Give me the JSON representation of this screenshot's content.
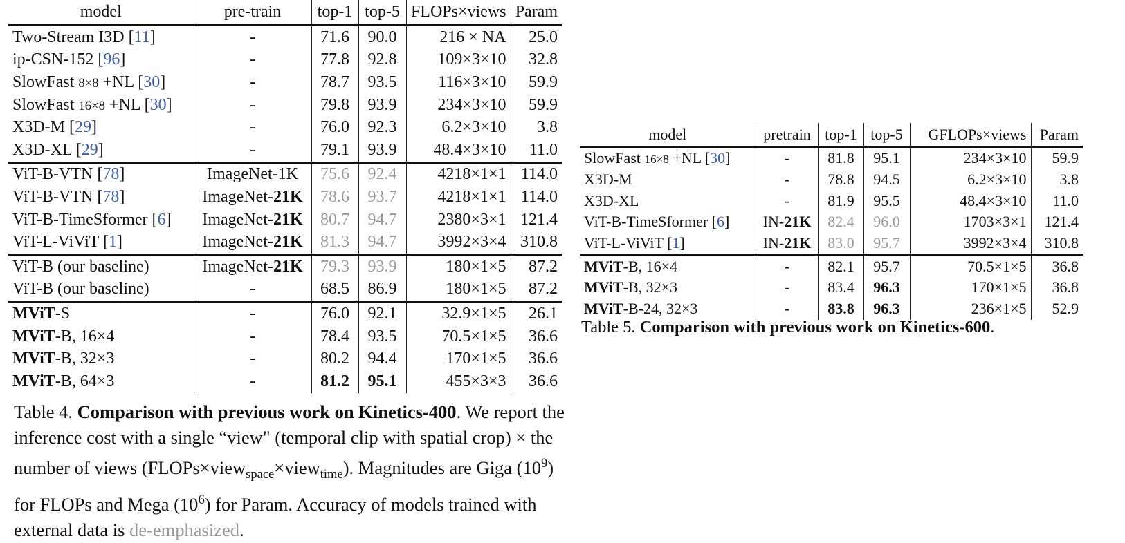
{
  "table4": {
    "header": [
      "model",
      "pre-train",
      "top-1",
      "top-5",
      "FLOPs×views",
      "Param"
    ],
    "groups": [
      [
        [
          [
            "Two-Stream I3D [",
            {
              "text": "11",
              "style": "cite"
            },
            "]"
          ],
          [
            "-"
          ],
          [
            "71.6"
          ],
          [
            "90.0"
          ],
          [
            "216 × NA"
          ],
          [
            "25.0"
          ]
        ],
        [
          [
            "ip-CSN-152 [",
            {
              "text": "96",
              "style": "cite"
            },
            "]"
          ],
          [
            "-"
          ],
          [
            "77.8"
          ],
          [
            "92.8"
          ],
          [
            "109×3×10"
          ],
          [
            "32.8"
          ]
        ],
        [
          [
            "SlowFast ",
            {
              "text": "8×8",
              "style": "small"
            },
            " +NL [",
            {
              "text": "30",
              "style": "cite"
            },
            "]"
          ],
          [
            "-"
          ],
          [
            "78.7"
          ],
          [
            "93.5"
          ],
          [
            "116×3×10"
          ],
          [
            "59.9"
          ]
        ],
        [
          [
            "SlowFast ",
            {
              "text": "16×8",
              "style": "small"
            },
            " +NL [",
            {
              "text": "30",
              "style": "cite"
            },
            "]"
          ],
          [
            "-"
          ],
          [
            "79.8"
          ],
          [
            "93.9"
          ],
          [
            "234×3×10"
          ],
          [
            "59.9"
          ]
        ],
        [
          [
            "X3D-M [",
            {
              "text": "29",
              "style": "cite"
            },
            "]"
          ],
          [
            "-"
          ],
          [
            "76.0"
          ],
          [
            "92.3"
          ],
          [
            "6.2×3×10"
          ],
          [
            "3.8"
          ]
        ],
        [
          [
            "X3D-XL [",
            {
              "text": "29",
              "style": "cite"
            },
            "]"
          ],
          [
            "-"
          ],
          [
            "79.1"
          ],
          [
            "93.9"
          ],
          [
            "48.4×3×10"
          ],
          [
            "11.0"
          ]
        ]
      ],
      [
        [
          [
            "ViT-B-VTN [",
            {
              "text": "78",
              "style": "cite"
            },
            "]"
          ],
          [
            "ImageNet-1K"
          ],
          [
            {
              "text": "75.6",
              "style": "gray"
            }
          ],
          [
            {
              "text": "92.4",
              "style": "gray"
            }
          ],
          [
            "4218×1×1"
          ],
          [
            "114.0"
          ]
        ],
        [
          [
            "ViT-B-VTN [",
            {
              "text": "78",
              "style": "cite"
            },
            "]"
          ],
          [
            "ImageNet-",
            {
              "text": "21K",
              "style": "bold"
            }
          ],
          [
            {
              "text": "78.6",
              "style": "gray"
            }
          ],
          [
            {
              "text": "93.7",
              "style": "gray"
            }
          ],
          [
            "4218×1×1"
          ],
          [
            "114.0"
          ]
        ],
        [
          [
            "ViT-B-TimeSformer [",
            {
              "text": "6",
              "style": "cite"
            },
            "]"
          ],
          [
            "ImageNet-",
            {
              "text": "21K",
              "style": "bold"
            }
          ],
          [
            {
              "text": "80.7",
              "style": "gray"
            }
          ],
          [
            {
              "text": "94.7",
              "style": "gray"
            }
          ],
          [
            "2380×3×1"
          ],
          [
            "121.4"
          ]
        ],
        [
          [
            "ViT-L-ViViT [",
            {
              "text": "1",
              "style": "cite"
            },
            "]"
          ],
          [
            "ImageNet-",
            {
              "text": "21K",
              "style": "bold"
            }
          ],
          [
            {
              "text": "81.3",
              "style": "gray"
            }
          ],
          [
            {
              "text": "94.7",
              "style": "gray"
            }
          ],
          [
            "3992×3×4"
          ],
          [
            "310.8"
          ]
        ]
      ],
      [
        [
          [
            "ViT-B (our baseline)"
          ],
          [
            "ImageNet-",
            {
              "text": "21K",
              "style": "bold"
            }
          ],
          [
            {
              "text": "79.3",
              "style": "gray"
            }
          ],
          [
            {
              "text": "93.9",
              "style": "gray"
            }
          ],
          [
            "180×1×5"
          ],
          [
            "87.2"
          ]
        ],
        [
          [
            "ViT-B (our baseline)"
          ],
          [
            "-"
          ],
          [
            "68.5"
          ],
          [
            "86.9"
          ],
          [
            "180×1×5"
          ],
          [
            "87.2"
          ]
        ]
      ],
      [
        [
          [
            {
              "text": "MViT",
              "style": "bold"
            },
            "-S"
          ],
          [
            "-"
          ],
          [
            "76.0"
          ],
          [
            "92.1"
          ],
          [
            "32.9×1×5"
          ],
          [
            "26.1"
          ]
        ],
        [
          [
            {
              "text": "MViT",
              "style": "bold"
            },
            "-B, 16×4"
          ],
          [
            "-"
          ],
          [
            "78.4"
          ],
          [
            "93.5"
          ],
          [
            "70.5×1×5"
          ],
          [
            "36.6"
          ]
        ],
        [
          [
            {
              "text": "MViT",
              "style": "bold"
            },
            "-B, 32×3"
          ],
          [
            "-"
          ],
          [
            "80.2"
          ],
          [
            "94.4"
          ],
          [
            "170×1×5"
          ],
          [
            "36.6"
          ]
        ],
        [
          [
            {
              "text": "MViT",
              "style": "bold"
            },
            "-B, 64×3"
          ],
          [
            "-"
          ],
          [
            {
              "text": "81.2",
              "style": "bold"
            }
          ],
          [
            {
              "text": "95.1",
              "style": "bold"
            }
          ],
          [
            "455×3×3"
          ],
          [
            "36.6"
          ]
        ]
      ]
    ],
    "caption": [
      "Table 4. ",
      {
        "text": "Comparison with previous work on Kinetics-400",
        "style": "bold"
      },
      ". We report the inference cost with a single “view\" (temporal clip with spatial crop) × the number of views (FLOPs×view",
      {
        "text": "space",
        "style": "sub"
      },
      "×view",
      {
        "text": "time",
        "style": "sub"
      },
      "). Magnitudes are Giga (10",
      {
        "text": "9",
        "style": "sup"
      },
      ") for FLOPs and Mega (10",
      {
        "text": "6",
        "style": "sup"
      },
      ") for Param. Accuracy of models trained with external data is ",
      {
        "text": "de-emphasized",
        "style": "gray"
      },
      "."
    ]
  },
  "table5": {
    "header": [
      "model",
      "pretrain",
      "top-1",
      "top-5",
      "GFLOPs×views",
      "Param"
    ],
    "groups": [
      [
        [
          [
            "SlowFast ",
            {
              "text": "16×8",
              "style": "small"
            },
            " +NL [",
            {
              "text": "30",
              "style": "cite"
            },
            "]"
          ],
          [
            "-"
          ],
          [
            "81.8"
          ],
          [
            "95.1"
          ],
          [
            "234×3×10"
          ],
          [
            "59.9"
          ]
        ],
        [
          [
            "X3D-M"
          ],
          [
            "-"
          ],
          [
            "78.8"
          ],
          [
            "94.5"
          ],
          [
            "6.2×3×10"
          ],
          [
            "3.8"
          ]
        ],
        [
          [
            "X3D-XL"
          ],
          [
            "-"
          ],
          [
            "81.9"
          ],
          [
            "95.5"
          ],
          [
            "48.4×3×10"
          ],
          [
            "11.0"
          ]
        ],
        [
          [
            "ViT-B-TimeSformer [",
            {
              "text": "6",
              "style": "cite"
            },
            "]"
          ],
          [
            "IN-",
            {
              "text": "21K",
              "style": "bold"
            }
          ],
          [
            {
              "text": "82.4",
              "style": "gray"
            }
          ],
          [
            {
              "text": "96.0",
              "style": "gray"
            }
          ],
          [
            "1703×3×1"
          ],
          [
            "121.4"
          ]
        ],
        [
          [
            "ViT-L-ViViT [",
            {
              "text": "1",
              "style": "cite"
            },
            "]"
          ],
          [
            "IN-",
            {
              "text": "21K",
              "style": "bold"
            }
          ],
          [
            {
              "text": "83.0",
              "style": "gray"
            }
          ],
          [
            {
              "text": "95.7",
              "style": "gray"
            }
          ],
          [
            "3992×3×4"
          ],
          [
            "310.8"
          ]
        ]
      ],
      [
        [
          [
            {
              "text": "MViT",
              "style": "bold"
            },
            "-B, 16×4"
          ],
          [
            "-"
          ],
          [
            "82.1"
          ],
          [
            "95.7"
          ],
          [
            "70.5×1×5"
          ],
          [
            "36.8"
          ]
        ],
        [
          [
            {
              "text": "MViT",
              "style": "bold"
            },
            "-B, 32×3"
          ],
          [
            "-"
          ],
          [
            "83.4"
          ],
          [
            {
              "text": "96.3",
              "style": "bold"
            }
          ],
          [
            "170×1×5"
          ],
          [
            "36.8"
          ]
        ],
        [
          [
            {
              "text": "MViT",
              "style": "bold"
            },
            "-B-24, 32×3"
          ],
          [
            "-"
          ],
          [
            {
              "text": "83.8",
              "style": "bold"
            }
          ],
          [
            {
              "text": "96.3",
              "style": "bold"
            }
          ],
          [
            "236×1×5"
          ],
          [
            "52.9"
          ]
        ]
      ]
    ],
    "caption": [
      "Table 5. ",
      {
        "text": "Comparison with previous work on Kinetics-600",
        "style": "bold"
      },
      "."
    ]
  }
}
